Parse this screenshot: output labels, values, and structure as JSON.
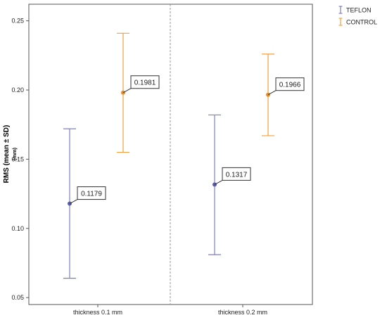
{
  "chart_data": {
    "type": "errorbar",
    "ylabel": "RMS (mean ± SD)",
    "ylabel_unit": "(mm)",
    "ylim": [
      0.045,
      0.262
    ],
    "yticks": [
      0.05,
      0.1,
      0.15,
      0.2,
      0.25
    ],
    "ytick_labels": [
      "0.05",
      "0.10",
      "0.15",
      "0.20",
      "0.25"
    ],
    "categories": [
      "thickness 0.1 mm",
      "thickness 0.2 mm"
    ],
    "legend_position": "top-right",
    "grid": false,
    "panel_divider": "dashed",
    "series": [
      {
        "name": "TEFLON",
        "color": "#7b7fc0",
        "means": [
          0.1179,
          0.1317
        ],
        "lower": [
          0.064,
          0.081
        ],
        "upper": [
          0.172,
          0.182
        ],
        "data_labels": [
          "0.1179",
          "0.1317"
        ]
      },
      {
        "name": "CONTROL",
        "color": "#f0a040",
        "means": [
          0.1981,
          0.1966
        ],
        "lower": [
          0.155,
          0.167
        ],
        "upper": [
          0.241,
          0.226
        ],
        "data_labels": [
          "0.1981",
          "0.1966"
        ]
      }
    ]
  }
}
